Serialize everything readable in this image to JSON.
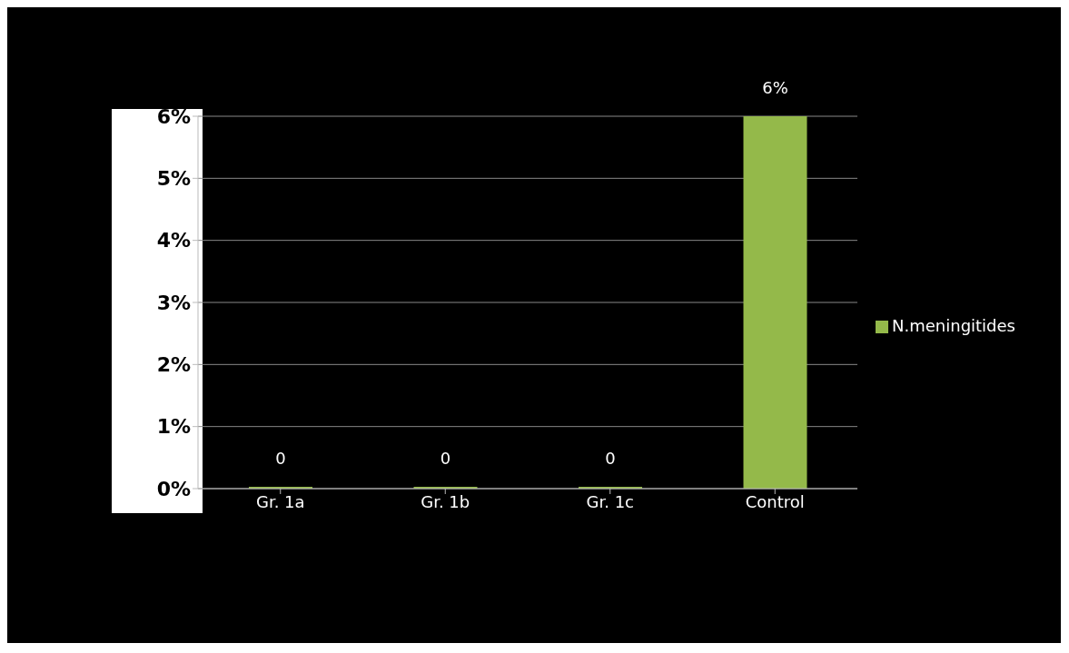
{
  "chart_data": {
    "type": "bar",
    "categories": [
      "Gr. 1a",
      "Gr. 1b",
      "Gr. 1c",
      "Control"
    ],
    "series": [
      {
        "name": "N.meningitides",
        "color": "#94b94a",
        "values": [
          0,
          0,
          0,
          6
        ],
        "value_labels": [
          "0",
          "0",
          "0",
          "6%"
        ]
      }
    ],
    "ylim": [
      0,
      6
    ],
    "yticks": [
      {
        "value": 0,
        "label": "0%"
      },
      {
        "value": 1,
        "label": "1%"
      },
      {
        "value": 2,
        "label": "2%"
      },
      {
        "value": 3,
        "label": "3%"
      },
      {
        "value": 4,
        "label": "4%"
      },
      {
        "value": 5,
        "label": "5%"
      },
      {
        "value": 6,
        "label": "6%"
      }
    ],
    "grid": "y",
    "legend": "right"
  }
}
